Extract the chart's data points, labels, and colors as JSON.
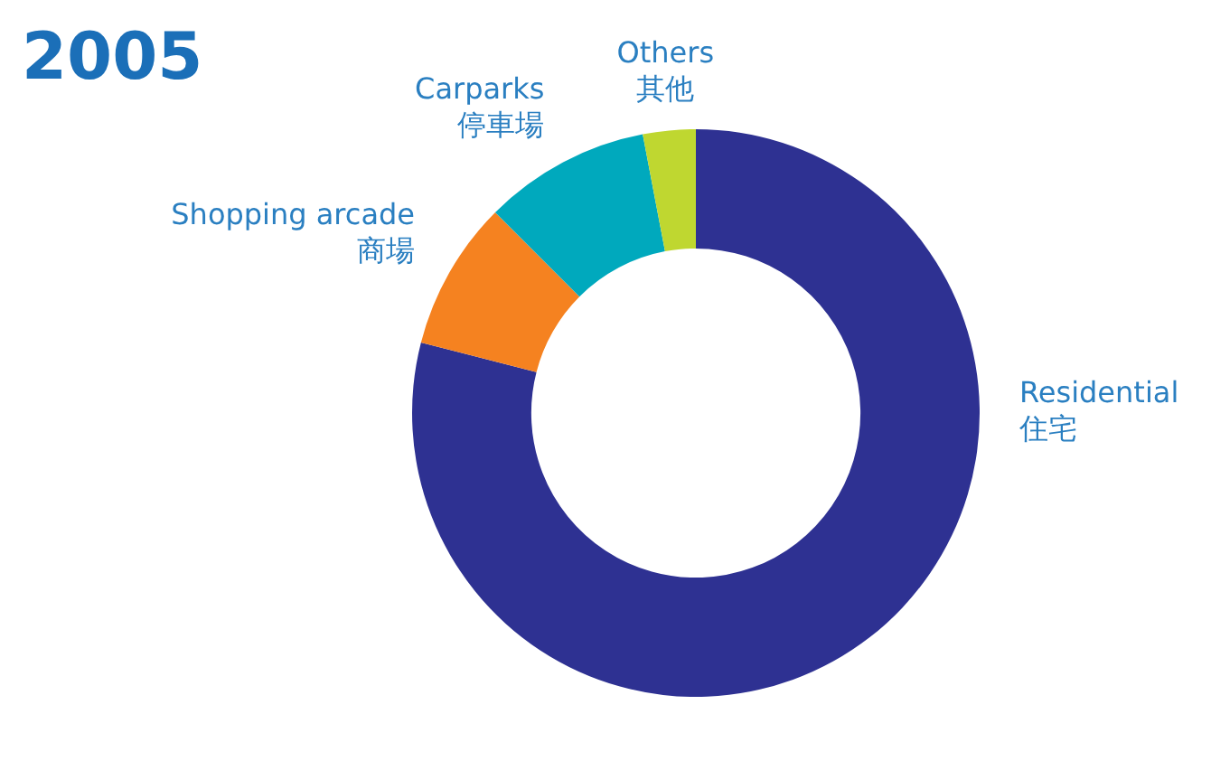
{
  "chart_data": {
    "type": "donut",
    "title": "2005",
    "categories": [
      "Residential\n住宅",
      "Shopping arcade\n商場",
      "Carparks\n停車場",
      "Others\n其他"
    ],
    "values": [
      79,
      8.5,
      9.5,
      3
    ],
    "colors": [
      "#2e3192",
      "#f58220",
      "#00a9bd",
      "#bfd730"
    ],
    "legend": false
  }
}
